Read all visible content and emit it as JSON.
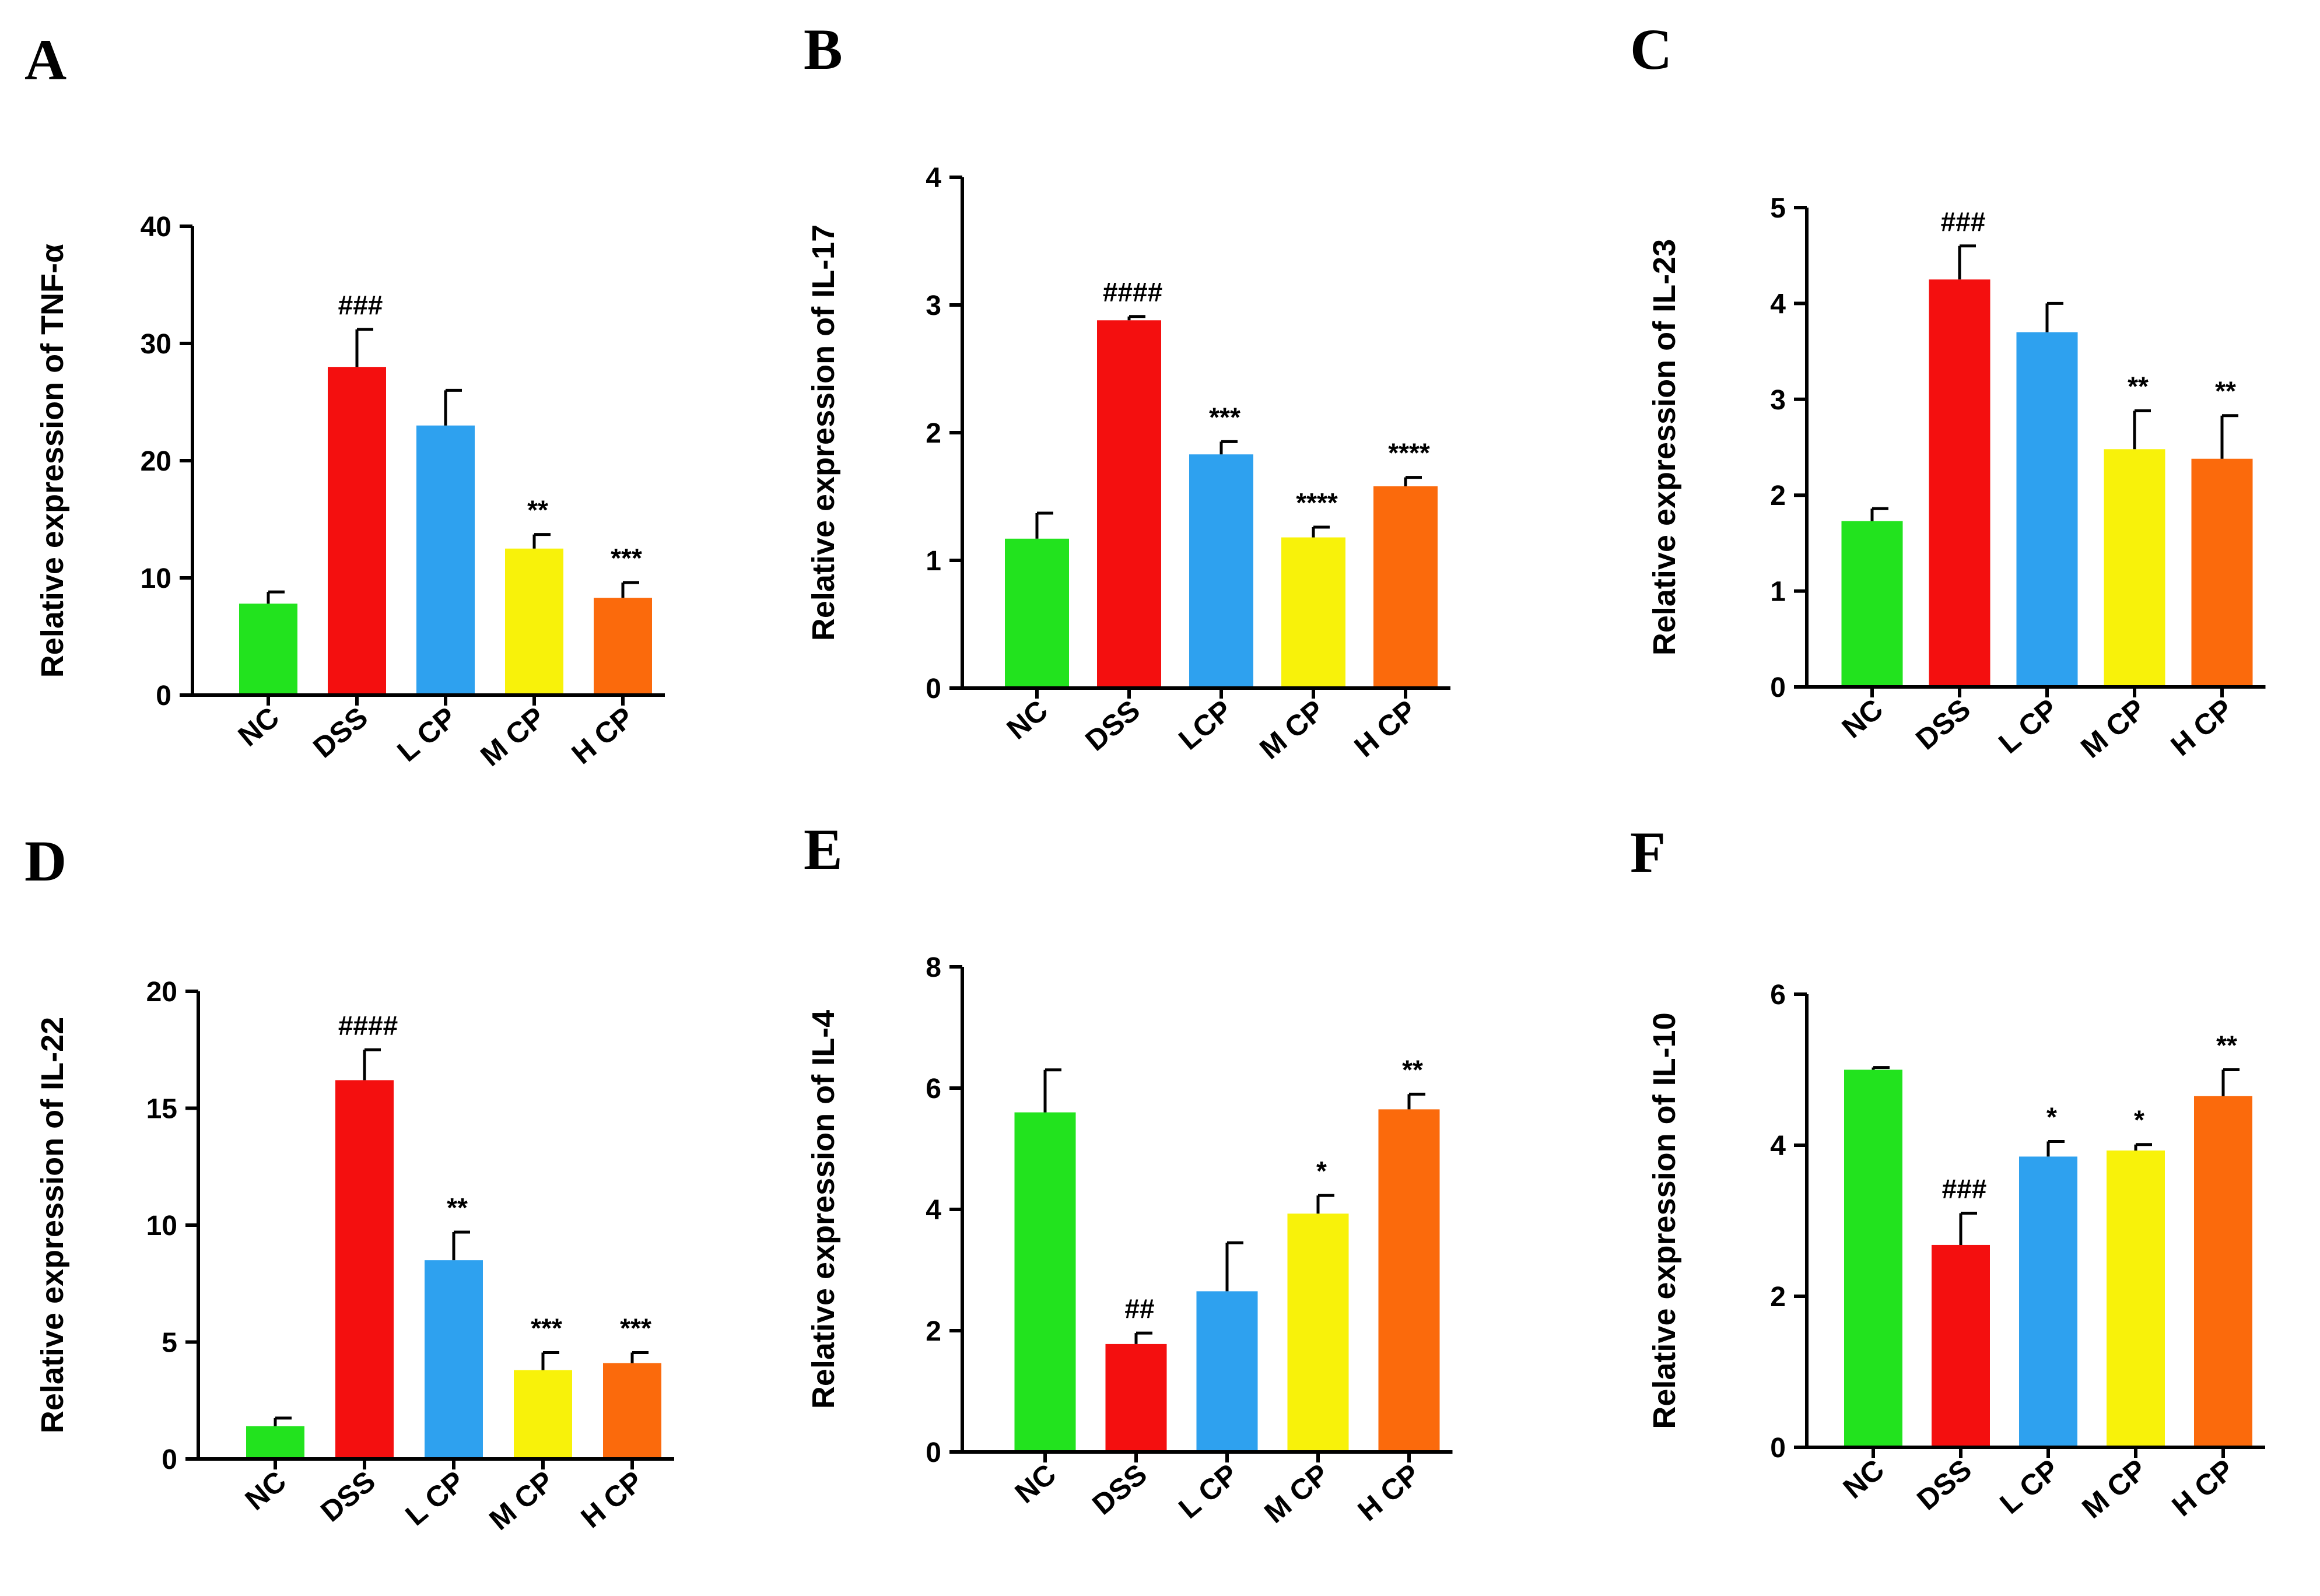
{
  "colors": {
    "NC": "#22e31e",
    "DSS": "#f40f0f",
    "LCP": "#2ea1ef",
    "MCP": "#f8f20a",
    "HCP": "#fb6a0c"
  },
  "chart_data": [
    {
      "type": "bar",
      "panel": "A",
      "ylabel": "Relative expression of TNF-α",
      "categories": [
        "NC",
        "DSS",
        "L CP",
        "M CP",
        "H CP"
      ],
      "values": [
        7.8,
        28.0,
        23.0,
        12.5,
        8.3
      ],
      "errors": [
        1.0,
        3.2,
        3.0,
        1.2,
        1.3
      ],
      "significance": [
        "",
        "###",
        "",
        "**",
        "***"
      ],
      "ylim": [
        0,
        40
      ],
      "yticks": [
        "0",
        "10",
        "20",
        "30",
        "40"
      ]
    },
    {
      "type": "bar",
      "panel": "B",
      "ylabel": "Relative expression of IL-17",
      "categories": [
        "NC",
        "DSS",
        "LCP",
        "M CP",
        "H CP"
      ],
      "values": [
        1.17,
        2.88,
        1.83,
        1.18,
        1.58
      ],
      "errors": [
        0.2,
        0.03,
        0.1,
        0.08,
        0.07
      ],
      "significance": [
        "",
        "####",
        "***",
        "****",
        "****"
      ],
      "ylim": [
        0,
        4
      ],
      "yticks": [
        "0",
        "1",
        "2",
        "3",
        "4"
      ]
    },
    {
      "type": "bar",
      "panel": "C",
      "ylabel": "Relative expression of IL-23",
      "categories": [
        "NC",
        "DSS",
        "L CP",
        "M CP",
        "H CP"
      ],
      "values": [
        1.73,
        4.25,
        3.7,
        2.48,
        2.38
      ],
      "errors": [
        0.13,
        0.35,
        0.3,
        0.4,
        0.45
      ],
      "significance": [
        "",
        "###",
        "",
        "**",
        "**"
      ],
      "ylim": [
        0,
        5
      ],
      "yticks": [
        "0",
        "1",
        "2",
        "3",
        "4",
        "5"
      ]
    },
    {
      "type": "bar",
      "panel": "D",
      "ylabel": "Relative expression of IL-22",
      "categories": [
        "NC",
        "DSS",
        "L CP",
        "M CP",
        "H CP"
      ],
      "values": [
        1.4,
        16.2,
        8.5,
        3.8,
        4.1
      ],
      "errors": [
        0.35,
        1.3,
        1.2,
        0.75,
        0.45
      ],
      "significance": [
        "",
        "####",
        "**",
        "***",
        "***"
      ],
      "ylim": [
        0,
        20
      ],
      "yticks": [
        "0",
        "5",
        "10",
        "15",
        "20"
      ]
    },
    {
      "type": "bar",
      "panel": "E",
      "ylabel": "Relative expression of IL-4",
      "categories": [
        "NC",
        "DSS",
        "L CP",
        "M CP",
        "H CP"
      ],
      "values": [
        5.6,
        1.78,
        2.65,
        3.93,
        5.65
      ],
      "errors": [
        0.7,
        0.18,
        0.8,
        0.3,
        0.25
      ],
      "significance": [
        "",
        "##",
        "",
        "*",
        "**"
      ],
      "ylim": [
        0,
        8
      ],
      "yticks": [
        "0",
        "2",
        "4",
        "6",
        "8"
      ]
    },
    {
      "type": "bar",
      "panel": "F",
      "ylabel": "Relative expression of IL-10",
      "categories": [
        "NC",
        "DSS",
        "L CP",
        "M CP",
        "H CP"
      ],
      "values": [
        5.0,
        2.68,
        3.85,
        3.93,
        4.65
      ],
      "errors": [
        0.03,
        0.42,
        0.2,
        0.08,
        0.35
      ],
      "significance": [
        "",
        "###",
        "*",
        "*",
        "**"
      ],
      "ylim": [
        0,
        6
      ],
      "yticks": [
        "0",
        "2",
        "4",
        "6"
      ]
    }
  ]
}
